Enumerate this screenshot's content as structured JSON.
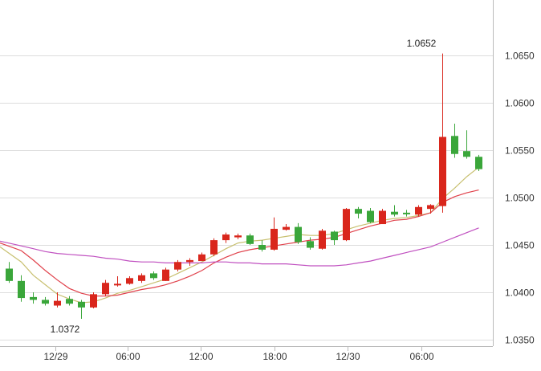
{
  "chart_data": {
    "type": "candlestick",
    "title": "",
    "xlabel": "",
    "ylabel": "",
    "ylim": [
      1.035,
      1.07
    ],
    "y_ticks": [
      "1.0650",
      "1.0600",
      "1.0550",
      "1.0500",
      "1.0450",
      "1.0400",
      "1.0350"
    ],
    "x_tick_labels": [
      "12/29",
      "06:00",
      "12:00",
      "18:00",
      "12/30",
      "06:00"
    ],
    "annotations": {
      "high_label": "1.0652",
      "low_label": "1.0372"
    },
    "colors": {
      "up": "#d9261c",
      "down": "#3aa63a",
      "ma_short": "#c8c070",
      "ma_mid": "#e0404a",
      "ma_long": "#c050c0",
      "grid": "#dddddd",
      "text": "#333333"
    },
    "candles": [
      {
        "o": 1.0425,
        "h": 1.0432,
        "l": 1.041,
        "c": 1.0412
      },
      {
        "o": 1.0412,
        "h": 1.0418,
        "l": 1.039,
        "c": 1.0394
      },
      {
        "o": 1.0395,
        "h": 1.04,
        "l": 1.0388,
        "c": 1.0392
      },
      {
        "o": 1.0392,
        "h": 1.0395,
        "l": 1.0386,
        "c": 1.0388
      },
      {
        "o": 1.0386,
        "h": 1.04,
        "l": 1.0384,
        "c": 1.0391
      },
      {
        "o": 1.0393,
        "h": 1.0396,
        "l": 1.0386,
        "c": 1.0388
      },
      {
        "o": 1.039,
        "h": 1.0392,
        "l": 1.0372,
        "c": 1.0384
      },
      {
        "o": 1.0384,
        "h": 1.04,
        "l": 1.0383,
        "c": 1.0398
      },
      {
        "o": 1.0398,
        "h": 1.0413,
        "l": 1.0396,
        "c": 1.041
      },
      {
        "o": 1.0408,
        "h": 1.0417,
        "l": 1.0406,
        "c": 1.0409
      },
      {
        "o": 1.0409,
        "h": 1.0417,
        "l": 1.0408,
        "c": 1.0415
      },
      {
        "o": 1.0412,
        "h": 1.042,
        "l": 1.041,
        "c": 1.0418
      },
      {
        "o": 1.042,
        "h": 1.0422,
        "l": 1.0413,
        "c": 1.0415
      },
      {
        "o": 1.0412,
        "h": 1.0426,
        "l": 1.0412,
        "c": 1.0424
      },
      {
        "o": 1.0424,
        "h": 1.0434,
        "l": 1.0422,
        "c": 1.0432
      },
      {
        "o": 1.0432,
        "h": 1.0436,
        "l": 1.0428,
        "c": 1.0434
      },
      {
        "o": 1.0433,
        "h": 1.0442,
        "l": 1.0433,
        "c": 1.044
      },
      {
        "o": 1.044,
        "h": 1.0457,
        "l": 1.0438,
        "c": 1.0455
      },
      {
        "o": 1.0455,
        "h": 1.0463,
        "l": 1.0452,
        "c": 1.0461
      },
      {
        "o": 1.0458,
        "h": 1.0462,
        "l": 1.0456,
        "c": 1.046
      },
      {
        "o": 1.046,
        "h": 1.0462,
        "l": 1.045,
        "c": 1.0451
      },
      {
        "o": 1.045,
        "h": 1.0455,
        "l": 1.0443,
        "c": 1.0445
      },
      {
        "o": 1.0445,
        "h": 1.0479,
        "l": 1.0444,
        "c": 1.0467
      },
      {
        "o": 1.0466,
        "h": 1.0472,
        "l": 1.0465,
        "c": 1.0469
      },
      {
        "o": 1.0469,
        "h": 1.0473,
        "l": 1.0451,
        "c": 1.0453
      },
      {
        "o": 1.0454,
        "h": 1.0458,
        "l": 1.0445,
        "c": 1.0447
      },
      {
        "o": 1.0446,
        "h": 1.0467,
        "l": 1.0445,
        "c": 1.0465
      },
      {
        "o": 1.0464,
        "h": 1.0465,
        "l": 1.045,
        "c": 1.0455
      },
      {
        "o": 1.0455,
        "h": 1.0489,
        "l": 1.0454,
        "c": 1.0488
      },
      {
        "o": 1.0488,
        "h": 1.049,
        "l": 1.0478,
        "c": 1.0483
      },
      {
        "o": 1.0486,
        "h": 1.0489,
        "l": 1.0473,
        "c": 1.0474
      },
      {
        "o": 1.0472,
        "h": 1.0488,
        "l": 1.0472,
        "c": 1.0486
      },
      {
        "o": 1.0485,
        "h": 1.0492,
        "l": 1.048,
        "c": 1.0482
      },
      {
        "o": 1.0484,
        "h": 1.0487,
        "l": 1.048,
        "c": 1.0483
      },
      {
        "o": 1.0482,
        "h": 1.0492,
        "l": 1.048,
        "c": 1.049
      },
      {
        "o": 1.0488,
        "h": 1.0493,
        "l": 1.0483,
        "c": 1.0492
      },
      {
        "o": 1.0491,
        "h": 1.0652,
        "l": 1.0484,
        "c": 1.0564
      },
      {
        "o": 1.0565,
        "h": 1.0578,
        "l": 1.0542,
        "c": 1.0546
      },
      {
        "o": 1.0549,
        "h": 1.0571,
        "l": 1.0541,
        "c": 1.0543
      },
      {
        "o": 1.0543,
        "h": 1.0545,
        "l": 1.0528,
        "c": 1.053
      }
    ],
    "series": [
      {
        "values": [
          1.0448,
          1.0432,
          1.0418,
          1.0408,
          1.0398,
          1.0393,
          1.0389,
          1.039,
          1.0394,
          1.0399,
          1.0402,
          1.0406,
          1.041,
          1.0414,
          1.042,
          1.0426,
          1.0432,
          1.0439,
          1.0446,
          1.0452,
          1.0454,
          1.0455,
          1.0457,
          1.0459,
          1.0461,
          1.046,
          1.046,
          1.0462,
          1.0466,
          1.047,
          1.0473,
          1.0476,
          1.0478,
          1.0479,
          1.0481,
          1.0484,
          1.0499,
          1.051,
          1.0522,
          1.0532
        ]
      },
      {
        "values": [
          1.0452,
          1.0444,
          1.0434,
          1.0423,
          1.0413,
          1.0404,
          1.0399,
          1.0396,
          1.0396,
          1.0397,
          1.04,
          1.0403,
          1.0405,
          1.0408,
          1.0412,
          1.0417,
          1.0423,
          1.0431,
          1.0437,
          1.0442,
          1.0445,
          1.0447,
          1.0449,
          1.0451,
          1.0453,
          1.0455,
          1.0456,
          1.0458,
          1.0462,
          1.0466,
          1.047,
          1.0473,
          1.0476,
          1.0477,
          1.048,
          1.0484,
          1.0495,
          1.0501,
          1.0505,
          1.0508
        ]
      },
      {
        "values": [
          1.0454,
          1.0449,
          1.0446,
          1.0443,
          1.0441,
          1.044,
          1.0439,
          1.0438,
          1.0436,
          1.0435,
          1.0433,
          1.0432,
          1.0432,
          1.0431,
          1.0431,
          1.0431,
          1.0431,
          1.0432,
          1.0432,
          1.0431,
          1.0431,
          1.043,
          1.043,
          1.043,
          1.0429,
          1.0428,
          1.0428,
          1.0428,
          1.0429,
          1.0431,
          1.0433,
          1.0436,
          1.0439,
          1.0442,
          1.0445,
          1.0448,
          1.0453,
          1.0458,
          1.0463,
          1.0468
        ]
      }
    ]
  }
}
